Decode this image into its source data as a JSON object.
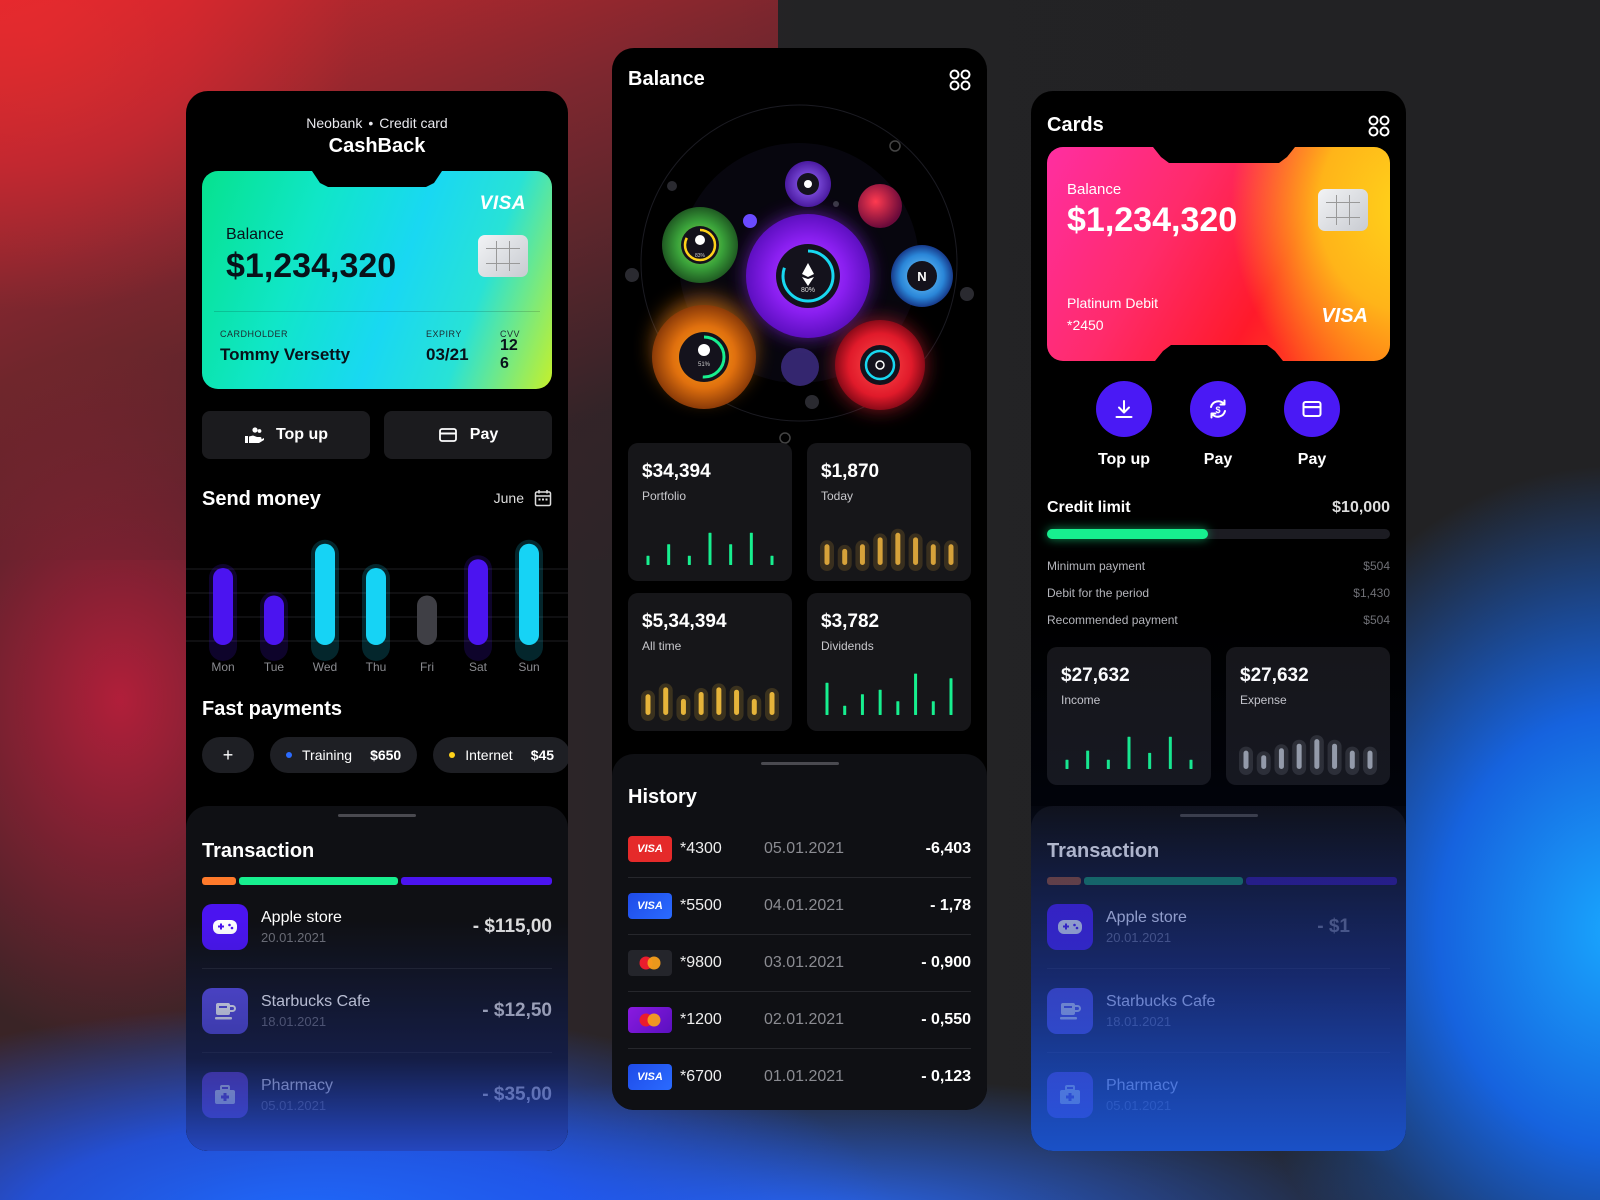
{
  "left": {
    "subtitle_a": "Neobank",
    "subtitle_sep": "•",
    "subtitle_b": "Credit card",
    "title": "CashBack",
    "card": {
      "brand": "VISA",
      "balance_label": "Balance",
      "balance": "$1,234,320",
      "cardholder_label": "CARDHOLDER",
      "cardholder": "Tommy Versetty",
      "expiry_label": "EXPIRY",
      "expiry": "03/21",
      "cvv_label": "CVV",
      "cvv_a": "12",
      "cvv_b": "6"
    },
    "buttons": {
      "topup": "Top up",
      "pay": "Pay"
    },
    "send_money": {
      "title": "Send money",
      "month": "June",
      "days": [
        "Mon",
        "Tue",
        "Wed",
        "Thu",
        "Fri",
        "Sat",
        "Sun"
      ],
      "levels": [
        0.7,
        0.45,
        0.92,
        0.7,
        0.45,
        0.78,
        0.92
      ],
      "colors": [
        "#4b14f0",
        "#4b14f0",
        "#16d3f5",
        "#16d3f5",
        "#3f3f45",
        "#4b14f0",
        "#16d3f5"
      ]
    },
    "fast_payments": {
      "title": "Fast payments",
      "add": "+",
      "items": [
        {
          "label": "Training",
          "amount": "$650",
          "dot": "#2b6bff"
        },
        {
          "label": "Internet",
          "amount": "$45",
          "dot": "#ffd21a"
        }
      ]
    },
    "transaction": {
      "title": "Transaction",
      "segments": [
        {
          "color": "#ff7a2b",
          "share": 0.1
        },
        {
          "color": "#17ef8f",
          "share": 0.46
        },
        {
          "color": "#4b14f0",
          "share": 0.44
        }
      ],
      "items": [
        {
          "name": "Apple store",
          "date": "20.01.2021",
          "amount": "- $115,00",
          "icon": "gamepad-icon",
          "color": "#4b14f0"
        },
        {
          "name": "Starbucks Cafe",
          "date": "18.01.2021",
          "amount": "- $12,50",
          "icon": "coffee-icon",
          "color": "#5a4be0"
        },
        {
          "name": "Pharmacy",
          "date": "05.01.2021",
          "amount": "- $35,00",
          "icon": "medkit-icon",
          "color": "#6a3bd0"
        }
      ]
    }
  },
  "middle": {
    "title": "Balance",
    "bubbles": {
      "eth": "80%",
      "green": "83%",
      "orange": "51%"
    },
    "stats": [
      {
        "value": "$34,394",
        "label": "Portfolio",
        "bars": [
          0.2,
          0.45,
          0.2,
          0.7,
          0.45,
          0.7,
          0.2
        ],
        "color": "#17ef8f"
      },
      {
        "value": "$1,870",
        "label": "Today",
        "bars": [
          0.45,
          0.35,
          0.45,
          0.6,
          0.7,
          0.6,
          0.45,
          0.45
        ],
        "color": "#d6a23a"
      },
      {
        "value": "$5,34,394",
        "label": "All time",
        "bars": [
          0.45,
          0.6,
          0.35,
          0.5,
          0.6,
          0.55,
          0.35,
          0.5
        ],
        "color": "#e6b43a"
      },
      {
        "value": "$3,782",
        "label": "Dividends",
        "bars": [
          0.7,
          0.2,
          0.45,
          0.55,
          0.3,
          0.9,
          0.3,
          0.8
        ],
        "color": "#17ef8f"
      }
    ],
    "history": {
      "title": "History",
      "rows": [
        {
          "card": "*4300",
          "date": "05.01.2021",
          "amount": "-6,403",
          "type": "visa-red"
        },
        {
          "card": "*5500",
          "date": "04.01.2021",
          "amount": "- 1,78",
          "type": "visa-blue"
        },
        {
          "card": "*9800",
          "date": "03.01.2021",
          "amount": "- 0,900",
          "type": "mc-dark"
        },
        {
          "card": "*1200",
          "date": "02.01.2021",
          "amount": "- 0,550",
          "type": "mc-purple"
        },
        {
          "card": "*6700",
          "date": "01.01.2021",
          "amount": "- 0,123",
          "type": "visa-blue"
        }
      ],
      "visa_text": "VISA"
    }
  },
  "right": {
    "title": "Cards",
    "card": {
      "balance_label": "Balance",
      "balance": "$1,234,320",
      "product": "Platinum Debit",
      "number": "*2450",
      "brand": "VISA"
    },
    "actions": [
      "Top up",
      "Pay",
      "Pay"
    ],
    "credit": {
      "title": "Credit limit",
      "limit": "$10,000",
      "progress": 0.47,
      "rows": [
        {
          "label": "Minimum payment",
          "value": "$504"
        },
        {
          "label": "Debit for the period",
          "value": "$1,430"
        },
        {
          "label": "Recommended payment",
          "value": "$504"
        }
      ]
    },
    "stats": [
      {
        "value": "$27,632",
        "label": "Income",
        "bars": [
          0.2,
          0.4,
          0.2,
          0.7,
          0.35,
          0.7,
          0.2
        ],
        "color": "#17ef8f"
      },
      {
        "value": "$27,632",
        "label": "Expense",
        "bars": [
          0.4,
          0.3,
          0.45,
          0.55,
          0.65,
          0.55,
          0.4,
          0.4
        ],
        "color": "#9aa0aa"
      }
    ],
    "transaction": {
      "title": "Transaction",
      "items": [
        {
          "name": "Apple store",
          "date": "20.01.2021",
          "amount": "- $1"
        },
        {
          "name": "Starbucks Cafe",
          "date": "18.01.2021"
        },
        {
          "name": "Pharmacy",
          "date": "05.01.2021"
        }
      ]
    }
  }
}
